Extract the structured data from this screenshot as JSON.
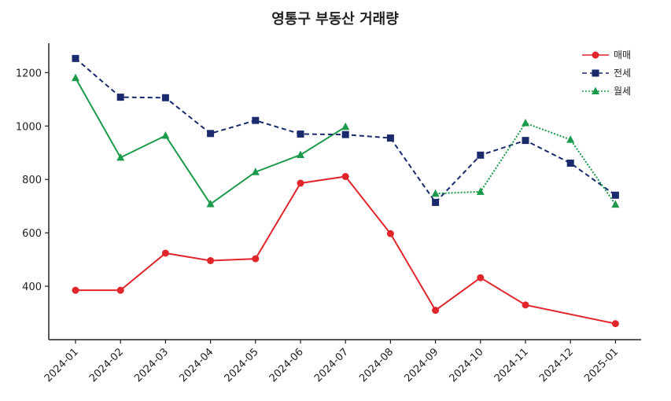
{
  "chart_data": {
    "type": "line",
    "title": "영통구 부동산 거래량",
    "xlabel": "",
    "ylabel": "",
    "categories": [
      "2024-01",
      "2024-02",
      "2024-03",
      "2024-04",
      "2024-05",
      "2024-06",
      "2024-07",
      "2024-08",
      "2024-09",
      "2024-10",
      "2024-11",
      "2024-12",
      "2025-01"
    ],
    "yticks": [
      400,
      600,
      800,
      1000,
      1200
    ],
    "ylim": [
      200,
      1310
    ],
    "grid": false,
    "legend_position": "top-right",
    "series": [
      {
        "name": "매매",
        "color": "#e0262b",
        "style": "solid",
        "marker": "circle",
        "values": [
          385,
          385,
          524,
          496,
          503,
          786,
          811,
          597,
          310,
          432,
          330,
          null,
          260
        ]
      },
      {
        "name": "전세",
        "color": "#1a2a6c",
        "style": "dashed",
        "marker": "square",
        "values": [
          1253,
          1108,
          1106,
          972,
          1021,
          970,
          968,
          955,
          714,
          891,
          946,
          861,
          741
        ]
      },
      {
        "name": "월세",
        "color": "#1a9a4a",
        "style": "dotted",
        "marker": "triangle",
        "values": [
          null,
          null,
          null,
          null,
          null,
          null,
          null,
          null,
          747,
          754,
          1011,
          949,
          706
        ]
      }
    ],
    "solid_segments": {
      "월세": [
        1180,
        882,
        964,
        708,
        828,
        892,
        997
      ]
    }
  }
}
